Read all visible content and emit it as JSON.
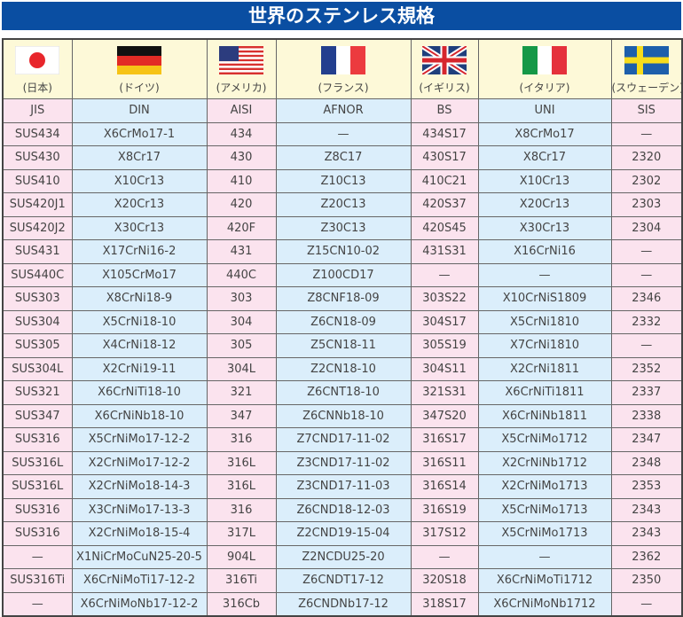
{
  "title": "世界のステンレス規格",
  "countries": [
    {
      "name": "(日本)",
      "flag": "japan-flag-icon",
      "code": "JIS"
    },
    {
      "name": "(ドイツ)",
      "flag": "germany-flag-icon",
      "code": "DIN"
    },
    {
      "name": "(アメリカ)",
      "flag": "usa-flag-icon",
      "code": "AISI"
    },
    {
      "name": "(フランス)",
      "flag": "france-flag-icon",
      "code": "AFNOR"
    },
    {
      "name": "(イギリス)",
      "flag": "uk-flag-icon",
      "code": "BS"
    },
    {
      "name": "(イタリア)",
      "flag": "italy-flag-icon",
      "code": "UNI"
    },
    {
      "name": "(スウェーデン)",
      "flag": "sweden-flag-icon",
      "code": "SIS"
    }
  ],
  "colors": {
    "title_bg": "#0a4ea2",
    "pink": "#fbe3ee",
    "blue": "#dbeefb",
    "flag_row": "#fdf9d8"
  },
  "rows": [
    [
      "SUS434",
      "X6CrMo17-1",
      "434",
      "—",
      "434S17",
      "X8CrMo17",
      "—"
    ],
    [
      "SUS430",
      "X8Cr17",
      "430",
      "Z8C17",
      "430S17",
      "X8Cr17",
      "2320"
    ],
    [
      "SUS410",
      "X10Cr13",
      "410",
      "Z10C13",
      "410C21",
      "X10Cr13",
      "2302"
    ],
    [
      "SUS420J1",
      "X20Cr13",
      "420",
      "Z20C13",
      "420S37",
      "X20Cr13",
      "2303"
    ],
    [
      "SUS420J2",
      "X30Cr13",
      "420F",
      "Z30C13",
      "420S45",
      "X30Cr13",
      "2304"
    ],
    [
      "SUS431",
      "X17CrNi16-2",
      "431",
      "Z15CN10-02",
      "431S31",
      "X16CrNi16",
      "—"
    ],
    [
      "SUS440C",
      "X105CrMo17",
      "440C",
      "Z100CD17",
      "—",
      "—",
      "—"
    ],
    [
      "SUS303",
      "X8CrNi18-9",
      "303",
      "Z8CNF18-09",
      "303S22",
      "X10CrNiS1809",
      "2346"
    ],
    [
      "SUS304",
      "X5CrNi18-10",
      "304",
      "Z6CN18-09",
      "304S17",
      "X5CrNi1810",
      "2332"
    ],
    [
      "SUS305",
      "X4CrNi18-12",
      "305",
      "Z5CN18-11",
      "305S19",
      "X7CrNi1810",
      "—"
    ],
    [
      "SUS304L",
      "X2CrNi19-11",
      "304L",
      "Z2CN18-10",
      "304S11",
      "X2CrNi1811",
      "2352"
    ],
    [
      "SUS321",
      "X6CrNiTi18-10",
      "321",
      "Z6CNT18-10",
      "321S31",
      "X6CrNiTi1811",
      "2337"
    ],
    [
      "SUS347",
      "X6CrNiNb18-10",
      "347",
      "Z6CNNb18-10",
      "347S20",
      "X6CrNiNb1811",
      "2338"
    ],
    [
      "SUS316",
      "X5CrNiMo17-12-2",
      "316",
      "Z7CND17-11-02",
      "316S17",
      "X5CrNiMo1712",
      "2347"
    ],
    [
      "SUS316L",
      "X2CrNiMo17-12-2",
      "316L",
      "Z3CND17-11-02",
      "316S11",
      "X2CrNiNb1712",
      "2348"
    ],
    [
      "SUS316L",
      "X2CrNiMo18-14-3",
      "316L",
      "Z3CND17-11-03",
      "316S14",
      "X2CrNiMo1713",
      "2353"
    ],
    [
      "SUS316",
      "X3CrNiMo17-13-3",
      "316",
      "Z6CND18-12-03",
      "316S19",
      "X5CrNiMo1713",
      "2343"
    ],
    [
      "SUS316",
      "X2CrNiMo18-15-4",
      "317L",
      "Z2CND19-15-04",
      "317S12",
      "X5CrNiMo1713",
      "2343"
    ],
    [
      "—",
      "X1NiCrMoCuN25-20-5",
      "904L",
      "Z2NCDU25-20",
      "—",
      "—",
      "2362"
    ],
    [
      "SUS316Ti",
      "X6CrNiMoTi17-12-2",
      "316Ti",
      "Z6CNDT17-12",
      "320S18",
      "X6CrNiMoTi1712",
      "2350"
    ],
    [
      "—",
      "X6CrNiMoNb17-12-2",
      "316Cb",
      "Z6CNDNb17-12",
      "318S17",
      "X6CrNiMoNb1712",
      "—"
    ]
  ]
}
